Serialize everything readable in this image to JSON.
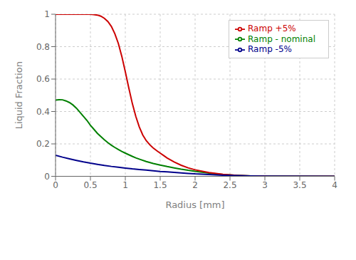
{
  "chart_data": {
    "type": "line",
    "xlabel": "Radius [mm]",
    "ylabel": "Liquid Fraction",
    "xlim": [
      0,
      4
    ],
    "ylim": [
      0,
      1
    ],
    "xticks": [
      0,
      0.5,
      1,
      1.5,
      2,
      2.5,
      3,
      3.5,
      4
    ],
    "yticks": [
      0,
      0.2,
      0.4,
      0.6,
      0.8,
      1
    ],
    "grid": true,
    "legend": "upper right",
    "series": [
      {
        "name": "Ramp - nominal",
        "color": "#008000",
        "x": [
          0.0,
          0.05,
          0.1,
          0.15,
          0.2,
          0.25,
          0.3,
          0.35,
          0.4,
          0.45,
          0.5,
          0.55,
          0.6,
          0.65,
          0.7,
          0.75,
          0.8,
          0.85,
          0.9,
          0.95,
          1.0,
          1.05,
          1.1,
          1.15,
          1.2,
          1.3,
          1.4,
          1.5,
          1.6,
          1.7,
          1.8,
          1.9,
          2.0,
          2.2,
          2.4,
          2.6,
          2.8,
          3.0,
          4.0
        ],
        "values": [
          0.47,
          0.473,
          0.472,
          0.465,
          0.455,
          0.44,
          0.42,
          0.395,
          0.37,
          0.345,
          0.315,
          0.29,
          0.265,
          0.245,
          0.225,
          0.208,
          0.192,
          0.178,
          0.165,
          0.153,
          0.143,
          0.133,
          0.123,
          0.114,
          0.106,
          0.091,
          0.079,
          0.069,
          0.06,
          0.052,
          0.044,
          0.037,
          0.031,
          0.02,
          0.011,
          0.006,
          0.002,
          0.001,
          0.0
        ]
      },
      {
        "name": "Ramp +5%",
        "color": "#cc0000",
        "x": [
          0.0,
          0.1,
          0.2,
          0.3,
          0.35,
          0.4,
          0.45,
          0.5,
          0.55,
          0.6,
          0.65,
          0.7,
          0.75,
          0.8,
          0.85,
          0.9,
          0.95,
          1.0,
          1.05,
          1.1,
          1.15,
          1.2,
          1.25,
          1.3,
          1.35,
          1.4,
          1.45,
          1.5,
          1.55,
          1.6,
          1.7,
          1.8,
          1.9,
          2.0,
          2.2,
          2.4,
          2.6,
          2.8,
          3.0,
          3.05,
          4.0
        ],
        "values": [
          1.0,
          1.0,
          1.0,
          1.0,
          1.0,
          1.0,
          1.0,
          1.0,
          0.998,
          0.995,
          0.988,
          0.975,
          0.955,
          0.925,
          0.88,
          0.82,
          0.74,
          0.645,
          0.545,
          0.45,
          0.37,
          0.305,
          0.255,
          0.22,
          0.195,
          0.175,
          0.158,
          0.143,
          0.128,
          0.113,
          0.088,
          0.068,
          0.052,
          0.04,
          0.023,
          0.012,
          0.006,
          0.002,
          0.001,
          0.0,
          0.0
        ]
      },
      {
        "name": "Ramp -5%",
        "color": "#00008b",
        "x": [
          0.0,
          0.1,
          0.2,
          0.3,
          0.4,
          0.5,
          0.6,
          0.7,
          0.8,
          0.9,
          1.0,
          1.1,
          1.2,
          1.3,
          1.4,
          1.5,
          1.6,
          1.7,
          1.8,
          1.9,
          2.0,
          2.2,
          2.4,
          2.6,
          2.8,
          3.0,
          4.0
        ],
        "values": [
          0.13,
          0.118,
          0.108,
          0.098,
          0.089,
          0.081,
          0.074,
          0.067,
          0.061,
          0.056,
          0.051,
          0.046,
          0.042,
          0.038,
          0.034,
          0.03,
          0.027,
          0.024,
          0.021,
          0.018,
          0.015,
          0.011,
          0.007,
          0.004,
          0.002,
          0.001,
          0.0
        ]
      }
    ]
  }
}
